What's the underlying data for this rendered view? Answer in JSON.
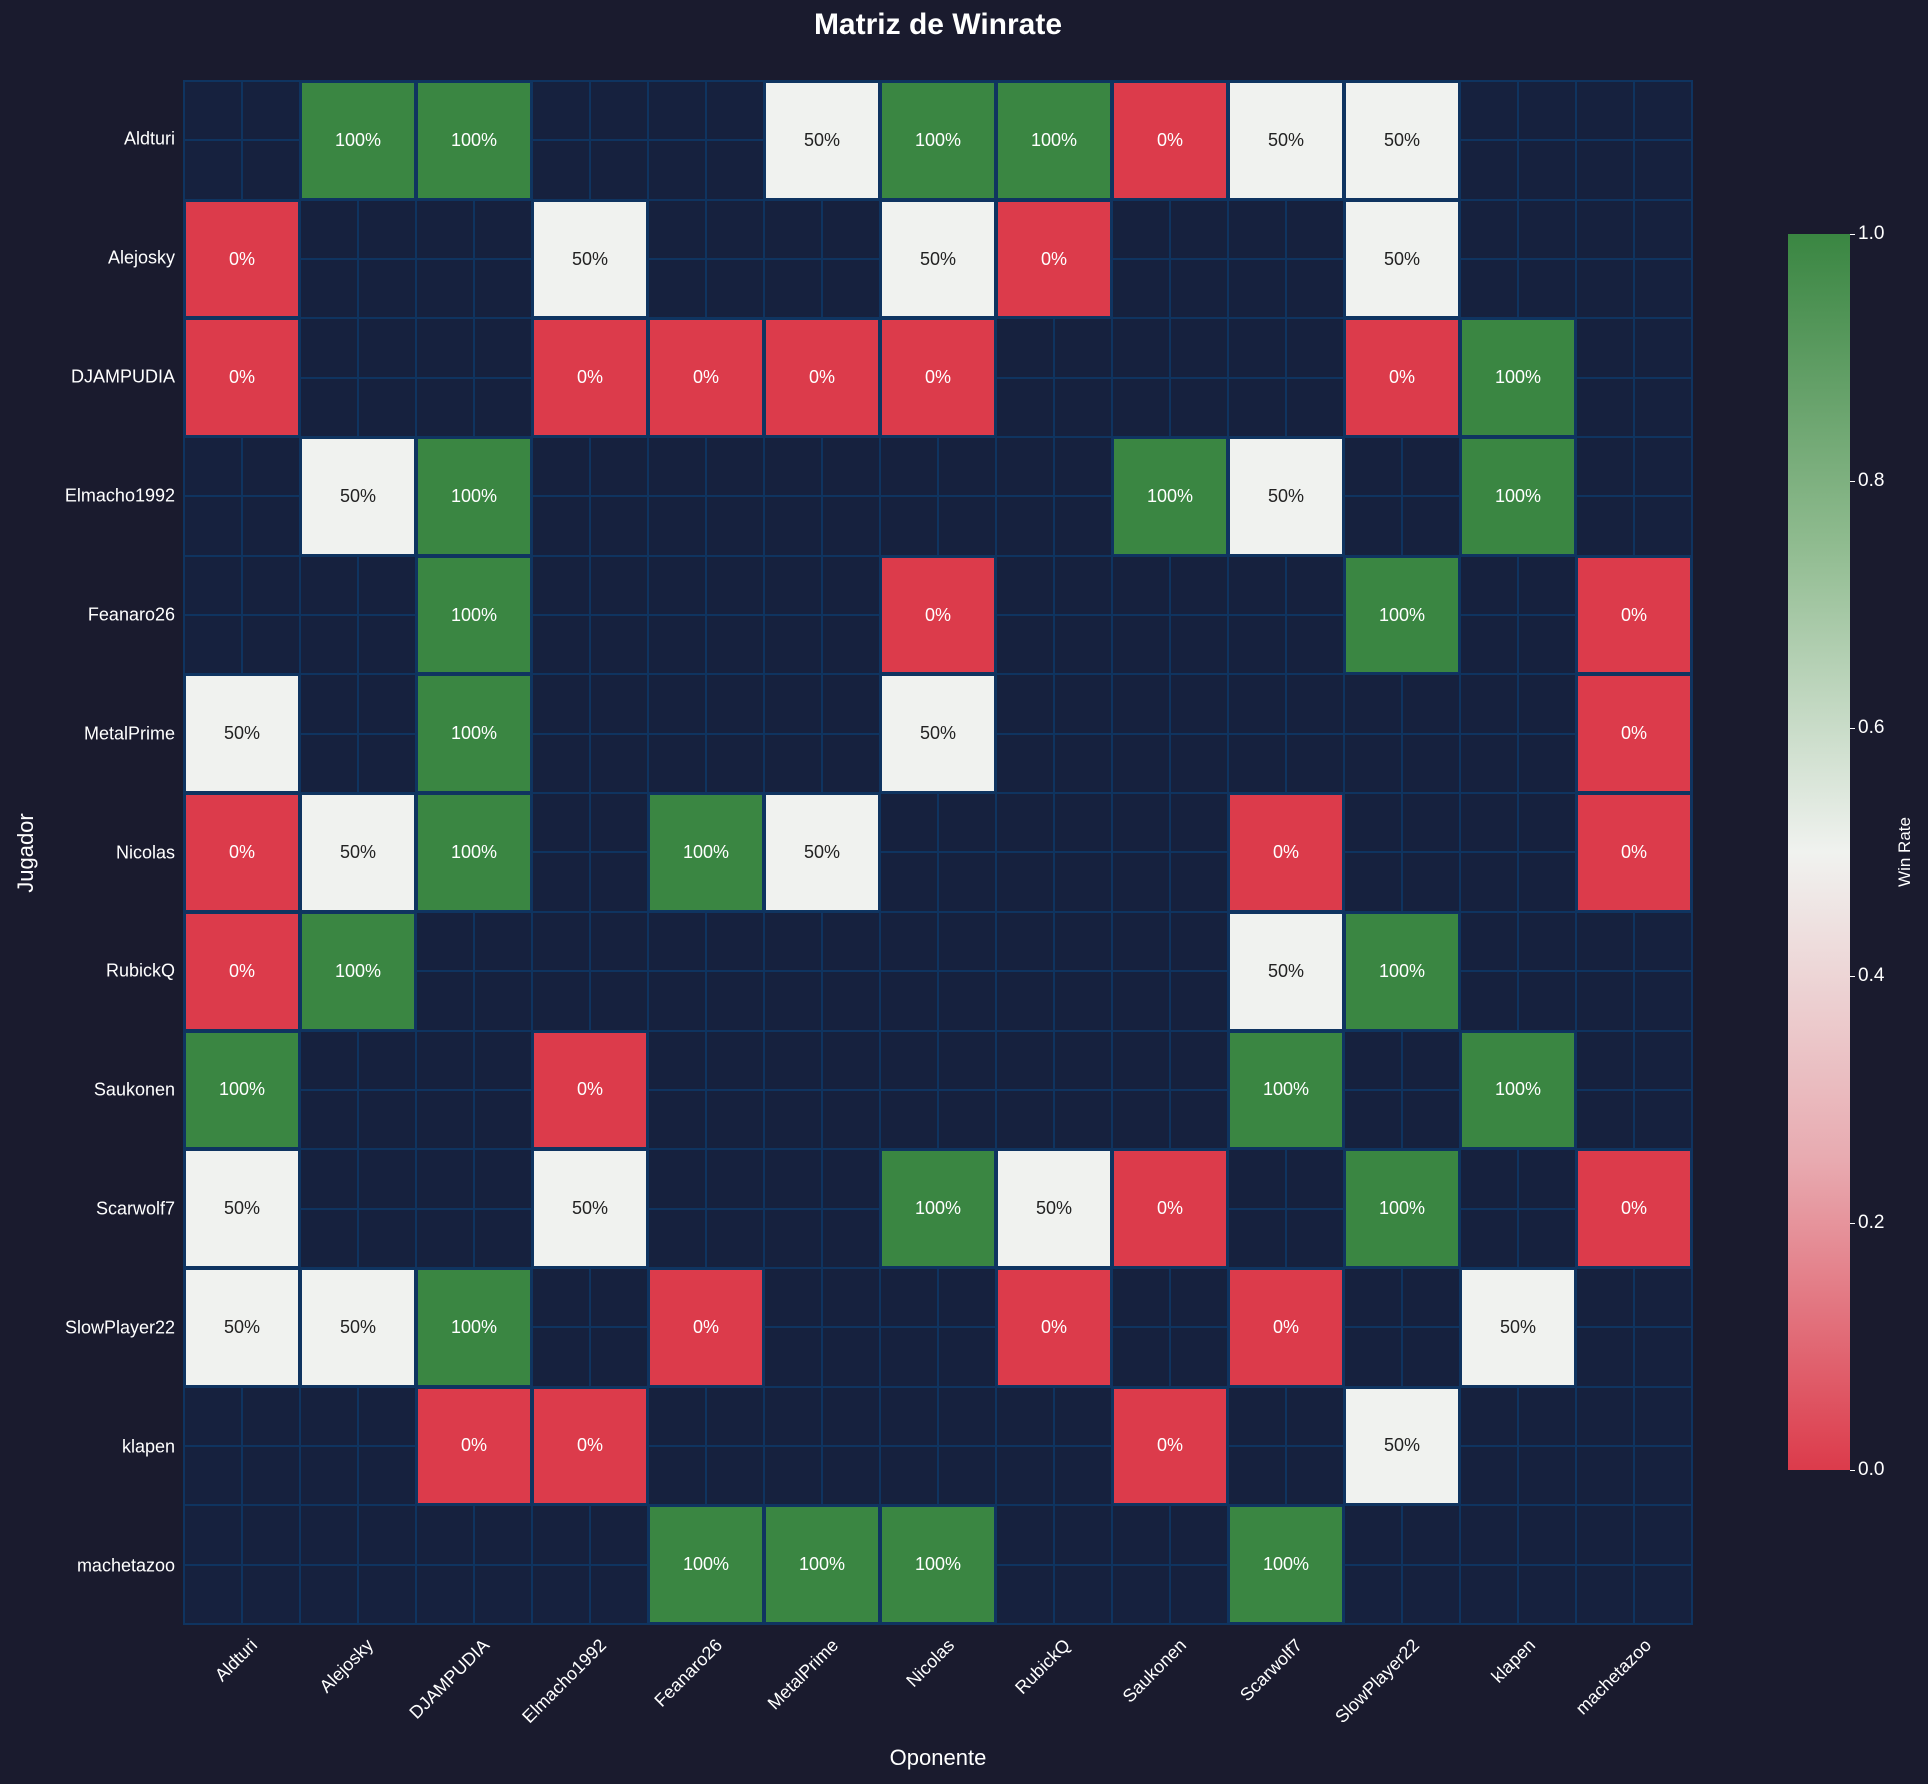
{
  "title": "Matriz de Winrate",
  "chart_data": {
    "type": "heatmap",
    "title": "Matriz de Winrate",
    "xlabel": "Oponente",
    "ylabel": "Jugador",
    "colorbar": {
      "label": "Win Rate",
      "range": [
        0.0,
        1.0
      ],
      "ticks": [
        "0.0",
        "0.2",
        "0.4",
        "0.6",
        "0.8",
        "1.0"
      ],
      "colors": {
        "low": "#dc3b4b",
        "mid": "#f0f2ef",
        "high": "#3a8642"
      }
    },
    "rows": [
      "Aldturi",
      "Alejosky",
      "DJAMPUDIA",
      "Elmacho1992",
      "Feanaro26",
      "MetalPrime",
      "Nicolas",
      "RubickQ",
      "Saukonen",
      "Scarwolf7",
      "SlowPlayer22",
      "klapen",
      "machetazoo"
    ],
    "columns": [
      "Aldturi",
      "Alejosky",
      "DJAMPUDIA",
      "Elmacho1992",
      "Feanaro26",
      "MetalPrime",
      "Nicolas",
      "RubickQ",
      "Saukonen",
      "Scarwolf7",
      "SlowPlayer22",
      "klapen",
      "machetazoo"
    ],
    "values": [
      [
        null,
        1.0,
        1.0,
        null,
        null,
        0.5,
        1.0,
        1.0,
        0.0,
        0.5,
        0.5,
        null,
        null
      ],
      [
        0.0,
        null,
        null,
        0.5,
        null,
        null,
        0.5,
        0.0,
        null,
        null,
        0.5,
        null,
        null
      ],
      [
        0.0,
        null,
        null,
        0.0,
        0.0,
        0.0,
        0.0,
        null,
        null,
        null,
        0.0,
        1.0,
        null
      ],
      [
        null,
        0.5,
        1.0,
        null,
        null,
        null,
        null,
        null,
        1.0,
        0.5,
        null,
        1.0,
        null
      ],
      [
        null,
        null,
        1.0,
        null,
        null,
        null,
        0.0,
        null,
        null,
        null,
        1.0,
        null,
        0.0
      ],
      [
        0.5,
        null,
        1.0,
        null,
        null,
        null,
        0.5,
        null,
        null,
        null,
        null,
        null,
        0.0
      ],
      [
        0.0,
        0.5,
        1.0,
        null,
        1.0,
        0.5,
        null,
        null,
        null,
        0.0,
        null,
        null,
        0.0
      ],
      [
        0.0,
        1.0,
        null,
        null,
        null,
        null,
        null,
        null,
        null,
        0.5,
        1.0,
        null,
        null
      ],
      [
        1.0,
        null,
        null,
        0.0,
        null,
        null,
        null,
        null,
        null,
        1.0,
        null,
        1.0,
        null
      ],
      [
        0.5,
        null,
        null,
        0.5,
        null,
        null,
        1.0,
        0.5,
        0.0,
        null,
        1.0,
        null,
        0.0
      ],
      [
        0.5,
        0.5,
        1.0,
        null,
        0.0,
        null,
        null,
        0.0,
        null,
        0.0,
        null,
        0.5,
        null
      ],
      [
        null,
        null,
        0.0,
        0.0,
        null,
        null,
        null,
        null,
        0.0,
        null,
        0.5,
        null,
        null
      ],
      [
        null,
        null,
        null,
        null,
        1.0,
        1.0,
        1.0,
        null,
        null,
        1.0,
        null,
        null,
        null
      ]
    ],
    "annotation_format": "percent"
  }
}
